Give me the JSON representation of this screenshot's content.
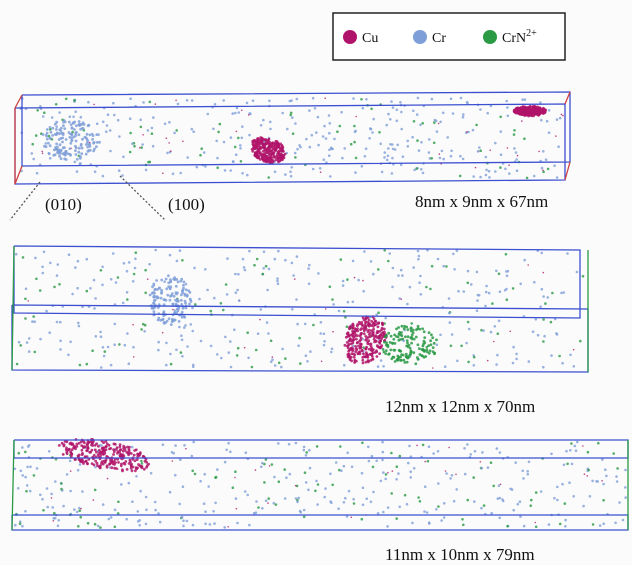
{
  "legend": {
    "items": [
      {
        "label": "Cu",
        "color": "#b0146a"
      },
      {
        "label": "Cr",
        "color": "#7f9fd8"
      },
      {
        "label": "CrN",
        "sup": "2+",
        "color": "#2a9a45"
      }
    ]
  },
  "directions": [
    "(010)",
    "(100)"
  ],
  "volumes": [
    {
      "size": "8nm x 9nm x 67nm"
    },
    {
      "size": "12nm x 12nm x 70nm"
    },
    {
      "size": "11nm x 10nm x 79nm"
    }
  ]
}
